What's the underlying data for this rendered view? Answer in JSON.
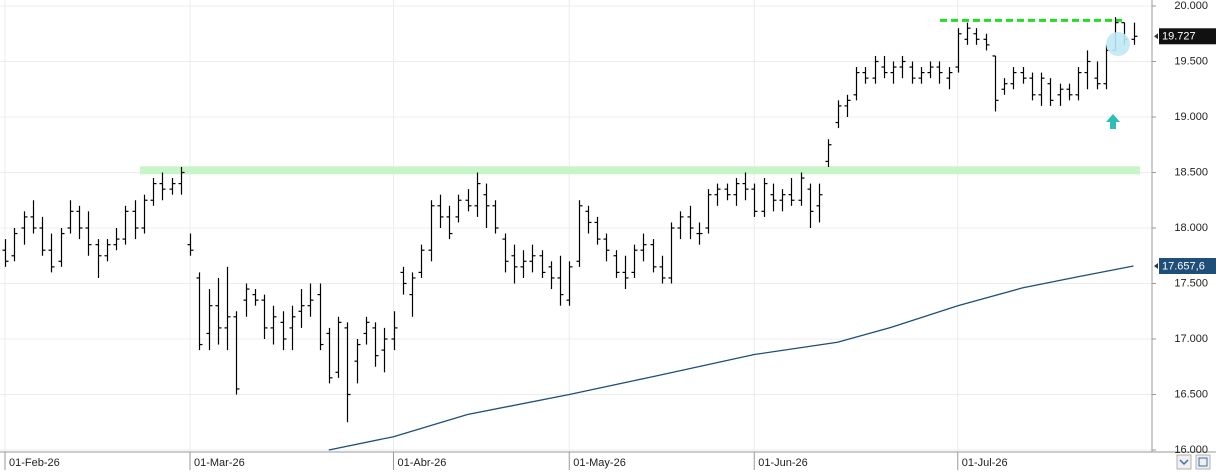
{
  "chart_data": {
    "type": "ohlc",
    "ylim": [
      15946,
      20054
    ],
    "yticks": [
      {
        "value": 16000,
        "label": "16.000"
      },
      {
        "value": 16500,
        "label": "16.500"
      },
      {
        "value": 17000,
        "label": "17.000"
      },
      {
        "value": 17500,
        "label": "17.500"
      },
      {
        "value": 18000,
        "label": "18.000"
      },
      {
        "value": 18500,
        "label": "18.500"
      },
      {
        "value": 19000,
        "label": "19.000"
      },
      {
        "value": 19500,
        "label": "19.500"
      },
      {
        "value": 20000,
        "label": "20.000"
      }
    ],
    "grid": true,
    "color": "#000000",
    "categories": [
      "01-Feb-26",
      null,
      null,
      null,
      null,
      null,
      null,
      null,
      null,
      null,
      null,
      null,
      null,
      null,
      null,
      null,
      null,
      null,
      null,
      null,
      "01-Mar-26",
      null,
      null,
      null,
      null,
      null,
      null,
      null,
      null,
      null,
      null,
      null,
      null,
      null,
      null,
      null,
      null,
      null,
      null,
      null,
      null,
      null,
      "01-Abr-26",
      null,
      null,
      null,
      null,
      null,
      null,
      null,
      null,
      null,
      null,
      null,
      null,
      null,
      null,
      null,
      null,
      null,
      null,
      "01-May-26",
      null,
      null,
      null,
      null,
      null,
      null,
      null,
      null,
      null,
      null,
      null,
      null,
      null,
      null,
      null,
      null,
      null,
      null,
      null,
      "01-Jun-26",
      null,
      null,
      null,
      null,
      null,
      null,
      null,
      null,
      null,
      null,
      null,
      null,
      null,
      null,
      null,
      null,
      null,
      null,
      null,
      null,
      null,
      "01-Jul-26",
      null,
      null,
      null,
      null,
      null,
      null,
      null,
      null,
      null,
      null,
      null,
      null,
      null,
      null,
      null,
      null,
      null,
      null,
      null
    ],
    "open": [
      17800,
      17750,
      18000,
      18100,
      18000,
      17800,
      17700,
      18000,
      18150,
      18000,
      17850,
      17750,
      17850,
      17900,
      18150,
      18000,
      18250,
      18400,
      18350,
      18400,
      17850,
      17550,
      17050,
      17300,
      17100,
      17200,
      17350,
      17400,
      17350,
      17100,
      17150,
      17100,
      17250,
      17300,
      17400,
      17050,
      16700,
      17100,
      16800,
      17050,
      17100,
      16900,
      17000,
      17600,
      17400,
      17600,
      17800,
      18200,
      18100,
      18100,
      18250,
      18200,
      18300,
      18200,
      17900,
      17750,
      17650,
      17700,
      17750,
      17650,
      17550,
      17350,
      17700,
      18150,
      18050,
      17900,
      17750,
      17600,
      17600,
      17800,
      17850,
      17650,
      17550,
      18000,
      18100,
      17950,
      18000,
      18300,
      18350,
      18300,
      18400,
      18350,
      18150,
      18300,
      18250,
      18300,
      18250,
      18350,
      18200,
      18600,
      18950,
      19100,
      19200,
      19400,
      19350,
      19450,
      19400,
      19450,
      19450,
      19350,
      19400,
      19450,
      19350,
      19450,
      19700,
      19750,
      19700,
      19550,
      19250,
      19300,
      19400,
      19350,
      19200,
      19300,
      19200,
      19250,
      19200,
      19400,
      19350,
      19300,
      19600,
      19850,
      19700
    ],
    "high": [
      17900,
      18000,
      18150,
      18250,
      18100,
      17950,
      18000,
      18250,
      18200,
      18150,
      17900,
      17900,
      18000,
      18200,
      18250,
      18300,
      18450,
      18500,
      18450,
      18550,
      17950,
      17600,
      17450,
      17550,
      17650,
      17250,
      17500,
      17450,
      17400,
      17300,
      17250,
      17300,
      17450,
      17500,
      17500,
      17100,
      17200,
      17150,
      17000,
      17200,
      17150,
      17100,
      17250,
      17650,
      17600,
      17850,
      18250,
      18300,
      18200,
      18300,
      18350,
      18500,
      18400,
      18250,
      17950,
      17850,
      17800,
      17850,
      17800,
      17700,
      17750,
      17700,
      18250,
      18200,
      18100,
      17950,
      17800,
      17750,
      17850,
      17950,
      17900,
      17750,
      18050,
      18150,
      18200,
      18050,
      18350,
      18400,
      18400,
      18450,
      18500,
      18400,
      18450,
      18400,
      18350,
      18450,
      18500,
      18400,
      18400,
      18800,
      19150,
      19200,
      19450,
      19450,
      19550,
      19550,
      19500,
      19550,
      19500,
      19450,
      19500,
      19500,
      19450,
      19800,
      19850,
      19800,
      19750,
      19550,
      19350,
      19450,
      19450,
      19400,
      19400,
      19350,
      19300,
      19300,
      19450,
      19600,
      19500,
      19650,
      19900,
      19850,
      19850
    ],
    "low": [
      17650,
      17700,
      17850,
      17950,
      17750,
      17600,
      17650,
      17950,
      17900,
      17750,
      17550,
      17700,
      17800,
      17850,
      17900,
      17950,
      18200,
      18250,
      18300,
      18300,
      17750,
      16900,
      16900,
      16950,
      16900,
      16500,
      17200,
      17300,
      17000,
      16950,
      16900,
      16900,
      17100,
      17200,
      16900,
      16600,
      16650,
      16250,
      16600,
      16950,
      16750,
      16700,
      16900,
      17400,
      17200,
      17550,
      17700,
      18000,
      17900,
      18050,
      18150,
      18100,
      18000,
      17950,
      17600,
      17500,
      17550,
      17600,
      17550,
      17450,
      17300,
      17300,
      17650,
      17950,
      17850,
      17700,
      17550,
      17450,
      17550,
      17700,
      17600,
      17500,
      17500,
      17900,
      17900,
      17850,
      17950,
      18200,
      18250,
      18200,
      18250,
      18100,
      18100,
      18150,
      18150,
      18200,
      18200,
      18000,
      18050,
      18550,
      18900,
      19000,
      19150,
      19300,
      19300,
      19350,
      19300,
      19350,
      19300,
      19300,
      19350,
      19300,
      19250,
      19400,
      19650,
      19650,
      19600,
      19050,
      19200,
      19250,
      19300,
      19150,
      19100,
      19100,
      19100,
      19150,
      19150,
      19250,
      19250,
      19250,
      19600,
      19650,
      19650
    ],
    "close": [
      17700,
      17950,
      18100,
      18000,
      17800,
      17650,
      17950,
      18150,
      18000,
      17850,
      17750,
      17850,
      17900,
      18150,
      18000,
      18250,
      18400,
      18350,
      18400,
      18500,
      17800,
      16950,
      17300,
      17100,
      17200,
      16550,
      17450,
      17350,
      17100,
      17200,
      17000,
      17200,
      17300,
      17350,
      16950,
      16650,
      17150,
      16500,
      16950,
      17150,
      16850,
      17000,
      17100,
      17500,
      17550,
      17800,
      18200,
      18100,
      17950,
      18250,
      18200,
      18400,
      18200,
      18000,
      17700,
      17650,
      17700,
      17750,
      17600,
      17550,
      17400,
      17650,
      18200,
      18050,
      17900,
      17800,
      17600,
      17550,
      17800,
      17850,
      17650,
      17550,
      18000,
      18100,
      18000,
      17950,
      18300,
      18350,
      18300,
      18400,
      18350,
      18150,
      18400,
      18250,
      18300,
      18250,
      18450,
      18150,
      18300,
      18750,
      19100,
      19150,
      19400,
      19350,
      19500,
      19400,
      19450,
      19500,
      19350,
      19400,
      19450,
      19400,
      19400,
      19750,
      19800,
      19700,
      19650,
      19150,
      19300,
      19400,
      19350,
      19200,
      19350,
      19150,
      19250,
      19200,
      19400,
      19500,
      19300,
      19600,
      19850,
      19700,
      19727
    ],
    "last_price": {
      "value": 19727,
      "label": "19.727"
    },
    "ma": {
      "color": "#1f4e79",
      "x": [
        35,
        42,
        50,
        61,
        70,
        81,
        90,
        96,
        103,
        110,
        116,
        122
      ],
      "values": [
        16000,
        16120,
        16320,
        16500,
        16660,
        16860,
        16970,
        17110,
        17300,
        17460,
        17560,
        17657.6
      ],
      "last": {
        "value": 17657.6,
        "label": "17.657,6"
      }
    },
    "levels": [
      {
        "value": 19870,
        "color": "#22dd22",
        "style": "dashed"
      },
      {
        "value": 18520,
        "color": "#c8f5c8",
        "style": "band"
      }
    ]
  }
}
